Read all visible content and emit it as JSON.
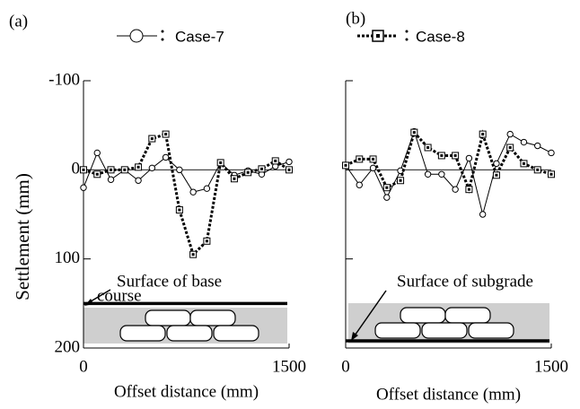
{
  "chart_data": [
    {
      "type": "line",
      "panel": "(a)",
      "ylabel": "Settlement (mm)",
      "xlabel": "Offset distance (mm)",
      "x": [
        0,
        100,
        200,
        300,
        400,
        500,
        600,
        700,
        800,
        900,
        1000,
        1100,
        1200,
        1300,
        1400,
        1500
      ],
      "xlim": [
        0,
        1500
      ],
      "xticks": [
        0,
        1500
      ],
      "ylim": [
        200,
        -100
      ],
      "yticks": [
        -100,
        0,
        100,
        200
      ],
      "zero_line": true,
      "show_ytick_labels": true,
      "series": [
        {
          "name": "Case-7",
          "color": "#000000",
          "marker": "circle",
          "dashed": false,
          "legend": true,
          "values": [
            20,
            -19,
            11,
            0,
            12,
            -2,
            -14,
            0,
            25,
            21,
            -8,
            6,
            1,
            5,
            -4,
            -9
          ]
        },
        {
          "color": "#000000",
          "marker": "square",
          "dashed": true,
          "legend": false,
          "values": [
            0,
            5,
            0,
            0,
            -3,
            -35,
            -40,
            45,
            95,
            80,
            -8,
            10,
            3,
            -1,
            -10,
            0
          ]
        }
      ],
      "annotation": {
        "text": [
          "Surface of base",
          "course"
        ],
        "y": 150
      }
    },
    {
      "type": "line",
      "panel": "(b)",
      "xlabel": "Offset distance (mm)",
      "x": [
        0,
        100,
        200,
        300,
        400,
        500,
        600,
        700,
        800,
        900,
        1000,
        1100,
        1200,
        1300,
        1400,
        1500
      ],
      "xlim": [
        0,
        1500
      ],
      "xticks": [
        0,
        1500
      ],
      "ylim": [
        200,
        -100
      ],
      "yticks": [
        -100,
        0,
        100,
        200
      ],
      "zero_line": true,
      "show_ytick_labels": false,
      "series": [
        {
          "color": "#000000",
          "marker": "circle",
          "dashed": false,
          "legend": false,
          "values": [
            -5,
            17,
            -2,
            31,
            1,
            -43,
            5,
            5,
            22,
            -13,
            50,
            -7,
            -40,
            -31,
            -27,
            -19
          ]
        },
        {
          "name": "Case-8",
          "color": "#000000",
          "marker": "square",
          "dashed": true,
          "legend": true,
          "values": [
            -5,
            -12,
            -12,
            20,
            12,
            -42,
            -25,
            -16,
            -16,
            22,
            -40,
            6,
            -25,
            -7,
            0,
            5
          ]
        }
      ],
      "annotation": {
        "text": [
          "Surface of subgrade"
        ],
        "y": 192
      }
    }
  ]
}
